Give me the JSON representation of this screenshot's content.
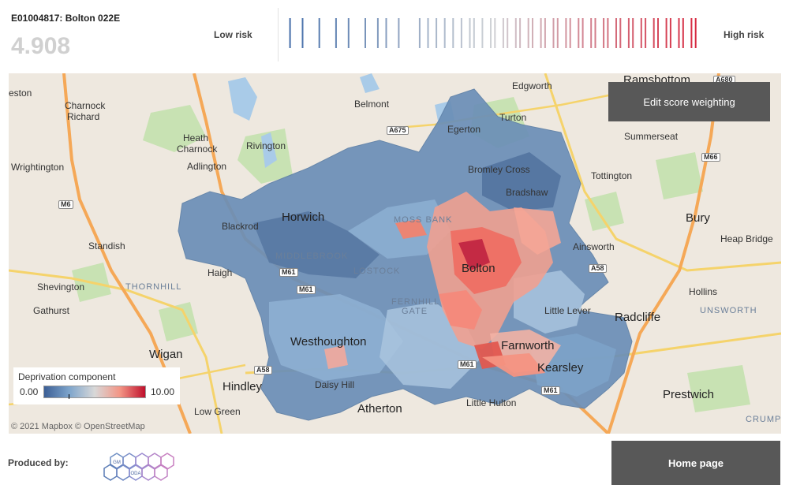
{
  "header": {
    "area_code": "E01004817: Bolton 022E",
    "score": "4.908",
    "low_risk_label": "Low risk",
    "high_risk_label": "High risk"
  },
  "risk_strip": {
    "min": 0,
    "max": 10,
    "values": [
      0.2,
      0.5,
      0.9,
      1.3,
      1.6,
      2.0,
      2.3,
      2.5,
      2.8,
      3.3,
      3.5,
      3.7,
      3.9,
      4.1,
      4.3,
      4.5,
      4.6,
      4.8,
      5.0,
      5.1,
      5.3,
      5.4,
      5.6,
      5.7,
      5.9,
      6.0,
      6.2,
      6.3,
      6.5,
      6.6,
      6.8,
      6.9,
      7.1,
      7.2,
      7.4,
      7.5,
      7.7,
      7.8,
      8.0,
      8.1,
      8.3,
      8.4,
      8.6,
      8.7,
      8.9,
      9.0,
      9.2,
      9.3,
      9.5,
      9.6,
      9.8,
      9.9
    ],
    "colors": {
      "low": "#3f6aa8",
      "mid": "#cfd2d6",
      "high": "#d7263d"
    }
  },
  "map": {
    "legend_title": "Deprivation component",
    "legend_min": "0.00",
    "legend_max": "10.00",
    "legend_colors": [
      "#3c5f96",
      "#7ea5cc",
      "#d8d8d8",
      "#f39585",
      "#c0102c"
    ],
    "attribution": "© 2021 Mapbox © OpenStreetMap",
    "edit_button_label": "Edit score weighting",
    "places": {
      "eston": "eston",
      "charnock_richard_1": "Charnock",
      "charnock_richard_2": "Richard",
      "belmont": "Belmont",
      "edgworth": "Edgworth",
      "ramsbottom": "Ramsbottom",
      "heath_charnock_1": "Heath",
      "heath_charnock_2": "Charnock",
      "egerton": "Egerton",
      "turton": "Turton",
      "rivington": "Rivington",
      "summerseat": "Summerseat",
      "wrightington": "Wrightington",
      "adlington": "Adlington",
      "bromley_cross": "Bromley Cross",
      "tottington": "Tottington",
      "bradshaw": "Bradshaw",
      "horwich": "Horwich",
      "moss_bank": "MOSS BANK",
      "bury": "Bury",
      "blackrod": "Blackrod",
      "heap_bridge": "Heap Bridge",
      "standish": "Standish",
      "middlebrook": "MIDDLEBROOK",
      "ainsworth": "Ainsworth",
      "haigh": "Haigh",
      "lostock": "LOSTOCK",
      "bolton": "Bolton",
      "shevington": "Shevington",
      "thornhill": "THORNHILL",
      "hollins": "Hollins",
      "fernhill_gate_1": "FERNHILL",
      "fernhill_gate_2": "GATE",
      "little_lever": "Little Lever",
      "gathurst": "Gathurst",
      "radcliffe": "Radcliffe",
      "unsworth": "UNSWORTH",
      "westhoughton": "Westhoughton",
      "wigan": "Wigan",
      "farnworth": "Farnworth",
      "kearsley": "Kearsley",
      "daisy_hill": "Daisy Hill",
      "hindley": "Hindley",
      "prestwich": "Prestwich",
      "atherton": "Atherton",
      "little_hulton": "Little Hulton",
      "low_green": "Low Green",
      "crump": "CRUMP"
    },
    "roads": {
      "a680": "A680",
      "a675": "A675",
      "m66": "M66",
      "m6": "M6",
      "a58_east": "A58",
      "m61_north": "M61",
      "m61_mid": "M61",
      "a58_west": "A58",
      "m61_south": "M61",
      "m61_east": "M61"
    }
  },
  "footer": {
    "produced_by": "Produced by:",
    "logo_text_1": "GM",
    "logo_text_2": "ODA",
    "home_button_label": "Home page"
  }
}
